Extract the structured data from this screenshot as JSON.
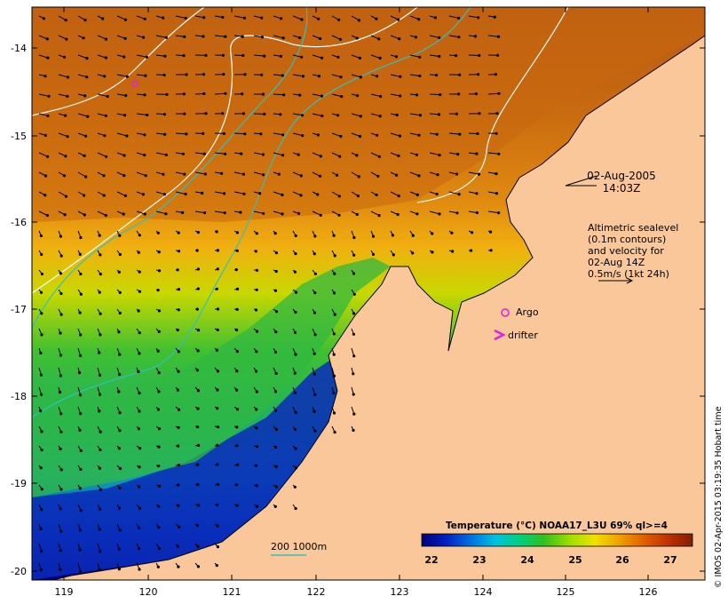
{
  "map": {
    "date": "02-Aug-2005",
    "time": "14:03Z",
    "sealevel_note": [
      "Altimetric sealevel",
      "(0.1m contours)",
      "and velocity for",
      "02-Aug 14Z",
      "0.5m/s (1kt 24h)"
    ],
    "legend_argo": "Argo",
    "legend_drifter": "drifter",
    "bathy_label": "200  1000m",
    "credit": "© IMOS 02-Apr-2015 03:19:35 Hobart time",
    "x_ticks": [
      "119",
      "120",
      "121",
      "122",
      "123",
      "124",
      "125",
      "126"
    ],
    "y_ticks": [
      "-14",
      "-15",
      "-16",
      "-17",
      "-18",
      "-19",
      "-20"
    ],
    "colorbar": {
      "title": "Temperature (°C) NOAA17_L3U 69% ql>=4",
      "labels": [
        "22",
        "23",
        "24",
        "25",
        "26",
        "27"
      ],
      "colors": [
        "#00007a",
        "#0020c0",
        "#0070e0",
        "#00c0e0",
        "#00d080",
        "#30c020",
        "#a0e000",
        "#f0e000",
        "#f0a000",
        "#e06000",
        "#c03000",
        "#802000"
      ]
    },
    "colors": {
      "land": "#f9c79a",
      "contour_sealevel": "#ffffff",
      "contour_bathy": "#30c0c0",
      "argo": "#e020e0"
    }
  }
}
